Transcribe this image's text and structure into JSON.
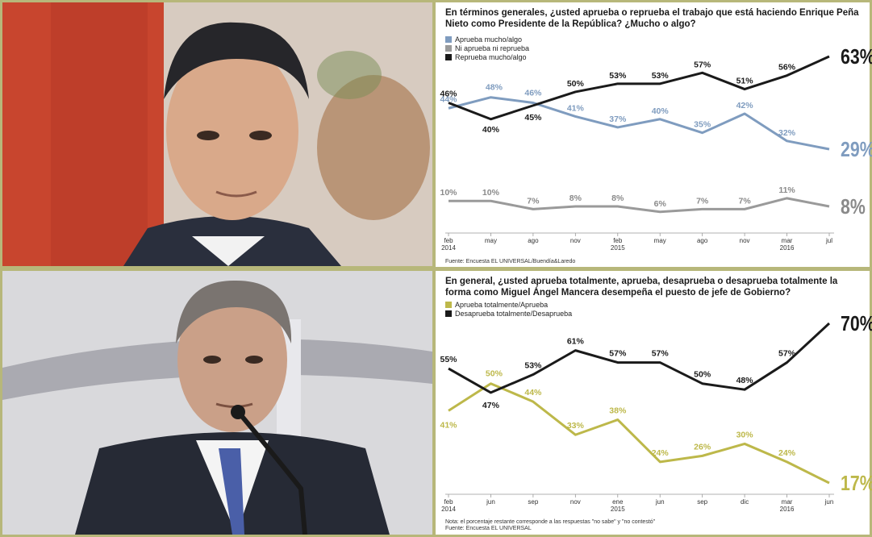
{
  "colors": {
    "approve_blue": "#7f9cbf",
    "neutral_gray": "#9a9a9a",
    "disapprove_black": "#1a1a1a",
    "approve_olive": "#bdb84a",
    "frame_border": "#b7b77a"
  },
  "photos": {
    "top": "Enrique Peña Nieto portrait",
    "bottom": "Miguel Ángel Mancera portrait at microphone"
  },
  "top_panel": {
    "question": "En términos generales, ¿usted aprueba o reprueba el trabajo que está haciendo Enrique Peña Nieto como Presidente de la República? ¿Mucho o algo?",
    "source": "Fuente: Encuesta EL UNIVERSAL/Buendía&Laredo"
  },
  "bottom_panel": {
    "question": "En general, ¿usted aprueba totalmente, aprueba, desaprueba o desaprueba totalmente la forma como Miguel Ángel Mancera desempeña el puesto de jefe de Gobierno?",
    "note": "Nota: el porcentaje restante corresponde a las respuestas \"no sabe\" y \"no contestó\"",
    "source": "Fuente: Encuesta EL UNIVERSAL"
  },
  "chart_data": [
    {
      "type": "line",
      "title": "En términos generales, ¿usted aprueba o reprueba el trabajo que está haciendo Enrique Peña Nieto como Presidente de la República? ¿Mucho o algo?",
      "categories": [
        "feb",
        "may",
        "ago",
        "nov",
        "feb",
        "may",
        "ago",
        "nov",
        "mar",
        "jul"
      ],
      "year_labels": [
        "2014",
        "",
        "",
        "",
        "2015",
        "",
        "",
        "",
        "2016",
        ""
      ],
      "ylim": [
        0,
        70
      ],
      "legend_position": "top-left",
      "grid": false,
      "series": [
        {
          "name": "Aprueba mucho/algo",
          "color": "#7f9cbf",
          "values": [
            44,
            48,
            46,
            41,
            37,
            40,
            35,
            42,
            32,
            29
          ]
        },
        {
          "name": "Ni aprueba ni reprueba",
          "color": "#9a9a9a",
          "values": [
            10,
            10,
            7,
            8,
            8,
            6,
            7,
            7,
            11,
            8
          ]
        },
        {
          "name": "Reprueba mucho/algo",
          "color": "#1a1a1a",
          "values": [
            46,
            40,
            45,
            50,
            53,
            53,
            57,
            51,
            56,
            63
          ]
        }
      ]
    },
    {
      "type": "line",
      "title": "En general, ¿usted aprueba totalmente, aprueba, desaprueba o desaprueba totalmente la forma como Miguel Ángel Mancera desempeña el puesto de jefe de Gobierno?",
      "categories": [
        "feb",
        "jun",
        "sep",
        "nov",
        "ene",
        "jun",
        "sep",
        "dic",
        "mar",
        "jun"
      ],
      "year_labels": [
        "2014",
        "",
        "",
        "",
        "2015",
        "",
        "",
        "",
        "2016",
        ""
      ],
      "ylim": [
        0,
        80
      ],
      "legend_position": "top-left",
      "grid": false,
      "series": [
        {
          "name": "Aprueba totalmente/Aprueba",
          "color": "#bdb84a",
          "values": [
            41,
            50,
            44,
            33,
            38,
            24,
            26,
            30,
            24,
            17
          ]
        },
        {
          "name": "Desaprueba totalmente/Desaprueba",
          "color": "#1a1a1a",
          "values": [
            55,
            47,
            53,
            61,
            57,
            57,
            50,
            48,
            57,
            70
          ]
        }
      ]
    }
  ]
}
